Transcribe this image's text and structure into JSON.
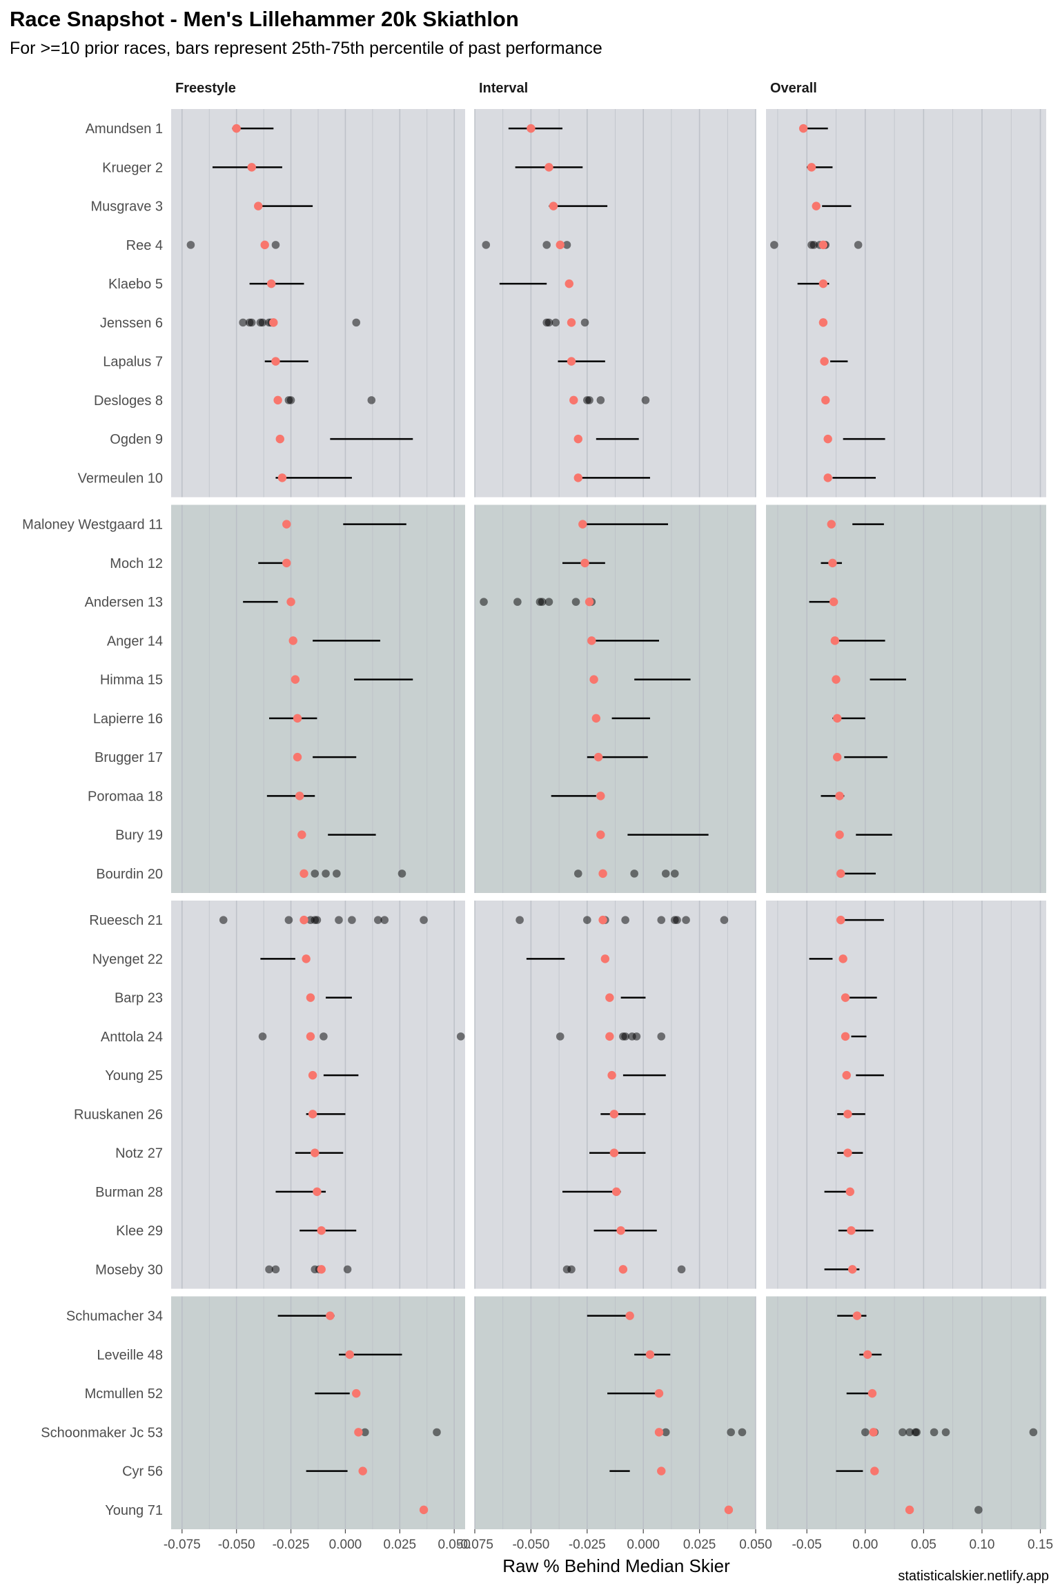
{
  "chart_data": {
    "type": "scatter",
    "title": "Race Snapshot -  Men's Lillehammer 20k Skiathlon",
    "subtitle": "For >=10 prior races, bars represent 25th-75th percentile of past performance",
    "caption": "statisticalskier.netlify.app",
    "xlabel": "Raw % Behind Median Skier",
    "colors": {
      "current_point": "#f8766d",
      "past_point": "#000000",
      "band_light": "#d9dbe0",
      "band_dark": "#c8d0d0",
      "gridline": "#b8bcc4"
    },
    "skiers": [
      "Amundsen 1",
      "Krueger 2",
      "Musgrave 3",
      "Ree 4",
      "Klaebo 5",
      "Jenssen 6",
      "Lapalus 7",
      "Desloges 8",
      "Ogden 9",
      "Vermeulen 10",
      "Maloney Westgaard 11",
      "Moch 12",
      "Andersen 13",
      "Anger 14",
      "Himma 15",
      "Lapierre 16",
      "Brugger 17",
      "Poromaa 18",
      "Bury 19",
      "Bourdin 20",
      "Rueesch 21",
      "Nyenget 22",
      "Barp 23",
      "Anttola 24",
      "Young 25",
      "Ruuskanen 26",
      "Notz 27",
      "Burman 28",
      "Klee 29",
      "Moseby 30",
      "Schumacher 34",
      "Leveille 48",
      "Mcmullen 52",
      "Schoonmaker Jc 53",
      "Cyr 56",
      "Young 71"
    ],
    "facets": [
      {
        "name": "Freestyle",
        "xlim": [
          -0.08,
          0.055
        ],
        "ticks": [
          -0.075,
          -0.05,
          -0.025,
          0.0,
          0.025,
          0.05
        ],
        "tick_labels": [
          "-0.075",
          "-0.050",
          "-0.025",
          "0.000",
          "0.025",
          "0.050"
        ],
        "current": [
          -0.05,
          -0.043,
          -0.04,
          -0.037,
          -0.034,
          -0.033,
          -0.032,
          -0.031,
          -0.03,
          -0.029,
          -0.027,
          -0.027,
          -0.025,
          -0.024,
          -0.023,
          -0.022,
          -0.022,
          -0.021,
          -0.02,
          -0.019,
          -0.019,
          -0.018,
          -0.016,
          -0.016,
          -0.015,
          -0.015,
          -0.014,
          -0.013,
          -0.011,
          -0.011,
          -0.007,
          0.002,
          0.005,
          0.006,
          0.008,
          0.036
        ],
        "iqr": [
          [
            -0.052,
            -0.033
          ],
          [
            -0.061,
            -0.029
          ],
          [
            -0.04,
            -0.015
          ],
          null,
          [
            -0.044,
            -0.019
          ],
          null,
          [
            -0.037,
            -0.017
          ],
          null,
          [
            -0.007,
            0.031
          ],
          [
            -0.032,
            0.003
          ],
          [
            -0.001,
            0.028
          ],
          [
            -0.04,
            -0.027
          ],
          [
            -0.047,
            -0.031
          ],
          [
            -0.015,
            0.016
          ],
          [
            0.004,
            0.031
          ],
          [
            -0.035,
            -0.013
          ],
          [
            -0.015,
            0.005
          ],
          [
            -0.036,
            -0.014
          ],
          [
            -0.008,
            0.014
          ],
          null,
          null,
          [
            -0.039,
            -0.023
          ],
          [
            -0.009,
            0.003
          ],
          null,
          [
            -0.01,
            0.006
          ],
          [
            -0.018,
            0.0
          ],
          [
            -0.023,
            -0.001
          ],
          [
            -0.032,
            -0.009
          ],
          [
            -0.021,
            0.005
          ],
          null,
          [
            -0.031,
            -0.005
          ],
          [
            -0.003,
            0.026
          ],
          [
            -0.014,
            0.002
          ],
          null,
          [
            -0.018,
            0.001
          ],
          null
        ],
        "past": [
          [],
          [],
          [],
          [
            -0.071,
            -0.032
          ],
          [],
          [
            -0.047,
            -0.044,
            -0.043,
            -0.039,
            -0.038,
            -0.035,
            -0.034,
            -0.033,
            0.005
          ],
          [],
          [
            -0.031,
            -0.026,
            -0.025,
            0.012
          ],
          [],
          [],
          [],
          [],
          [],
          [],
          [],
          [],
          [],
          [],
          [],
          [
            -0.014,
            -0.009,
            -0.004,
            0.026
          ],
          [
            -0.056,
            -0.026,
            -0.016,
            -0.014,
            -0.013,
            -0.003,
            0.003,
            0.015,
            0.018,
            0.036
          ],
          [],
          [],
          [
            -0.038,
            -0.01,
            0.053
          ],
          [],
          [],
          [],
          [],
          [],
          [
            -0.035,
            -0.032,
            -0.014,
            -0.012,
            -0.011,
            0.001
          ],
          [],
          [],
          [],
          [
            0.009,
            0.042
          ],
          [],
          []
        ]
      },
      {
        "name": "Interval",
        "xlim": [
          -0.075,
          0.05
        ],
        "ticks": [
          -0.075,
          -0.05,
          -0.025,
          0.0,
          0.025,
          0.05
        ],
        "tick_labels": [
          "-0.075",
          "-0.050",
          "-0.025",
          "0.000",
          "0.025",
          "0.050"
        ],
        "current": [
          -0.05,
          -0.042,
          -0.04,
          -0.037,
          -0.033,
          -0.032,
          -0.032,
          -0.031,
          -0.029,
          -0.029,
          -0.027,
          -0.026,
          -0.024,
          -0.023,
          -0.022,
          -0.021,
          -0.02,
          -0.019,
          -0.019,
          -0.018,
          -0.018,
          -0.017,
          -0.015,
          -0.015,
          -0.014,
          -0.013,
          -0.013,
          -0.012,
          -0.01,
          -0.009,
          -0.006,
          0.003,
          0.007,
          0.007,
          0.008,
          0.038
        ],
        "iqr": [
          [
            -0.06,
            -0.036
          ],
          [
            -0.057,
            -0.027
          ],
          [
            -0.042,
            -0.016
          ],
          null,
          [
            -0.064,
            -0.043
          ],
          null,
          [
            -0.038,
            -0.017
          ],
          null,
          [
            -0.021,
            -0.002
          ],
          [
            -0.028,
            0.003
          ],
          [
            -0.028,
            0.011
          ],
          [
            -0.036,
            -0.017
          ],
          null,
          [
            -0.023,
            0.007
          ],
          [
            -0.004,
            0.021
          ],
          [
            -0.014,
            0.003
          ],
          [
            -0.025,
            0.002
          ],
          [
            -0.041,
            -0.021
          ],
          [
            -0.007,
            0.029
          ],
          null,
          null,
          [
            -0.052,
            -0.035
          ],
          [
            -0.01,
            0.001
          ],
          null,
          [
            -0.009,
            0.01
          ],
          [
            -0.019,
            0.001
          ],
          [
            -0.024,
            0.001
          ],
          [
            -0.036,
            -0.01
          ],
          [
            -0.022,
            0.006
          ],
          null,
          [
            -0.025,
            -0.006
          ],
          [
            -0.004,
            0.012
          ],
          [
            -0.016,
            0.007
          ],
          null,
          [
            -0.015,
            -0.006
          ],
          null
        ],
        "past": [
          [],
          [],
          [],
          [
            -0.07,
            -0.043,
            -0.037,
            -0.034
          ],
          [],
          [
            -0.043,
            -0.042,
            -0.039,
            -0.026
          ],
          [],
          [
            -0.025,
            -0.024,
            -0.019,
            0.001
          ],
          [],
          [],
          [],
          [],
          [
            -0.071,
            -0.056,
            -0.046,
            -0.045,
            -0.042,
            -0.03,
            -0.024,
            -0.023
          ],
          [],
          [],
          [],
          [],
          [],
          [],
          [
            -0.029,
            -0.004,
            0.01,
            0.014
          ],
          [
            -0.055,
            -0.025,
            -0.017,
            -0.008,
            0.008,
            0.014,
            0.015,
            0.019,
            0.036
          ],
          [],
          [],
          [
            -0.037,
            -0.009,
            -0.008,
            -0.005,
            -0.003,
            0.008
          ],
          [],
          [],
          [],
          [],
          [],
          [
            -0.034,
            -0.032,
            0.017
          ],
          [],
          [],
          [],
          [
            0.01,
            0.039,
            0.044
          ],
          [],
          []
        ]
      },
      {
        "name": "Overall",
        "xlim": [
          -0.085,
          0.155
        ],
        "ticks": [
          -0.05,
          0.0,
          0.05,
          0.1,
          0.15
        ],
        "tick_labels": [
          "-0.05",
          "0.00",
          "0.05",
          "0.10",
          "0.15"
        ],
        "current": [
          -0.053,
          -0.046,
          -0.042,
          -0.036,
          -0.036,
          -0.036,
          -0.035,
          -0.034,
          -0.032,
          -0.032,
          -0.029,
          -0.028,
          -0.027,
          -0.026,
          -0.025,
          -0.024,
          -0.024,
          -0.022,
          -0.022,
          -0.021,
          -0.021,
          -0.019,
          -0.017,
          -0.017,
          -0.016,
          -0.015,
          -0.015,
          -0.013,
          -0.012,
          -0.011,
          -0.007,
          0.002,
          0.006,
          0.007,
          0.008,
          0.038
        ],
        "iqr": [
          [
            -0.053,
            -0.032
          ],
          [
            -0.05,
            -0.028
          ],
          [
            -0.037,
            -0.012
          ],
          null,
          [
            -0.058,
            -0.031
          ],
          null,
          [
            -0.03,
            -0.015
          ],
          null,
          [
            -0.019,
            0.017
          ],
          [
            -0.028,
            0.009
          ],
          [
            -0.011,
            0.016
          ],
          [
            -0.038,
            -0.02
          ],
          [
            -0.048,
            -0.025
          ],
          [
            -0.026,
            0.017
          ],
          [
            0.004,
            0.035
          ],
          [
            -0.028,
            0.0
          ],
          [
            -0.018,
            0.019
          ],
          [
            -0.038,
            -0.018
          ],
          [
            -0.008,
            0.023
          ],
          [
            -0.018,
            0.009
          ],
          [
            -0.02,
            0.016
          ],
          [
            -0.048,
            -0.028
          ],
          [
            -0.015,
            0.01
          ],
          [
            -0.012,
            0.001
          ],
          [
            -0.008,
            0.016
          ],
          [
            -0.024,
            0.0
          ],
          [
            -0.024,
            -0.002
          ],
          [
            -0.035,
            -0.012
          ],
          [
            -0.023,
            0.007
          ],
          [
            -0.035,
            -0.005
          ],
          [
            -0.024,
            0.001
          ],
          [
            -0.005,
            0.014
          ],
          [
            -0.016,
            0.004
          ],
          null,
          [
            -0.025,
            -0.002
          ],
          null
        ],
        "past": [
          [],
          [],
          [],
          [
            -0.078,
            -0.046,
            -0.044,
            -0.039,
            -0.036,
            -0.035,
            -0.034,
            -0.006
          ],
          [],
          [],
          [],
          [],
          [],
          [],
          [],
          [],
          [],
          [],
          [],
          [],
          [],
          [],
          [],
          [],
          [],
          [],
          [],
          [],
          [],
          [],
          [],
          [],
          [],
          [],
          [],
          [],
          [],
          [
            0.0,
            0.008,
            0.032,
            0.038,
            0.043,
            0.044,
            0.059,
            0.069,
            0.144
          ],
          [],
          [
            0.097
          ]
        ]
      }
    ],
    "groups": [
      {
        "rows": [
          0,
          9
        ],
        "shade": "light"
      },
      {
        "rows": [
          10,
          19
        ],
        "shade": "dark"
      },
      {
        "rows": [
          20,
          29
        ],
        "shade": "light"
      },
      {
        "rows": [
          30,
          35
        ],
        "shade": "dark"
      }
    ]
  }
}
